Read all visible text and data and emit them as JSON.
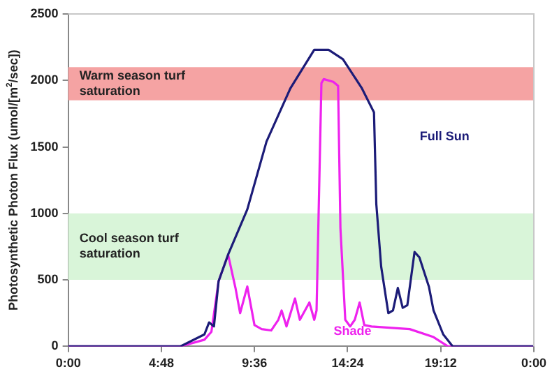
{
  "chart_data": {
    "type": "line",
    "ylabel": "Photosynthetic Photon Flux (umol/[m$^{2}$/sec])",
    "xlim": [
      0,
      24
    ],
    "xticks": [
      {
        "value": 0,
        "label": "0:00"
      },
      {
        "value": 4.8,
        "label": "4:48"
      },
      {
        "value": 9.6,
        "label": "9:36"
      },
      {
        "value": 14.4,
        "label": "14:24"
      },
      {
        "value": 19.2,
        "label": "19:12"
      },
      {
        "value": 24,
        "label": "0:00"
      }
    ],
    "ylim": [
      0,
      2500
    ],
    "yticks": [
      0,
      500,
      1000,
      1500,
      2000,
      2500
    ],
    "grid": false,
    "legend": false,
    "marker": "none",
    "line_style": "solid",
    "bands": [
      {
        "axis": "y",
        "from": 1850,
        "to": 2100,
        "label": "Warm season turf saturation",
        "color": "#f5a3a3"
      },
      {
        "axis": "y",
        "from": 500,
        "to": 1000,
        "label": "Cool season turf saturation",
        "color": "#d9f5d9"
      }
    ],
    "series": [
      {
        "name": "Full Sun",
        "color": "#1c1c78",
        "x": [
          0,
          5.78,
          7.02,
          7.26,
          7.51,
          7.75,
          8.24,
          9.23,
          10.22,
          11.45,
          12.68,
          13.42,
          14.16,
          15.14,
          15.76,
          15.88,
          16.13,
          16.5,
          16.74,
          16.99,
          17.24,
          17.48,
          17.85,
          18.1,
          18.59,
          18.83,
          19.33,
          19.82,
          24
        ],
        "values": [
          0,
          0,
          90,
          180,
          150,
          490,
          690,
          1030,
          1540,
          1940,
          2230,
          2230,
          2160,
          1940,
          1760,
          1070,
          600,
          250,
          270,
          440,
          290,
          310,
          710,
          670,
          450,
          270,
          90,
          0,
          0
        ]
      },
      {
        "name": "Shade",
        "color": "#ee22ee",
        "x": [
          0,
          5.78,
          7.02,
          7.38,
          7.75,
          8.24,
          8.62,
          8.86,
          9.23,
          9.6,
          9.97,
          10.46,
          10.83,
          11.0,
          11.25,
          11.69,
          11.94,
          12.43,
          12.68,
          12.8,
          13.05,
          13.17,
          13.66,
          13.91,
          14.03,
          14.28,
          14.53,
          14.77,
          15.02,
          15.26,
          15.63,
          17.6,
          18.83,
          19.57,
          24
        ],
        "values": [
          0,
          0,
          50,
          110,
          490,
          690,
          440,
          250,
          450,
          160,
          130,
          120,
          200,
          270,
          150,
          360,
          200,
          330,
          200,
          270,
          1980,
          2010,
          1990,
          1960,
          890,
          200,
          150,
          200,
          330,
          160,
          150,
          130,
          70,
          0,
          0
        ]
      }
    ]
  }
}
